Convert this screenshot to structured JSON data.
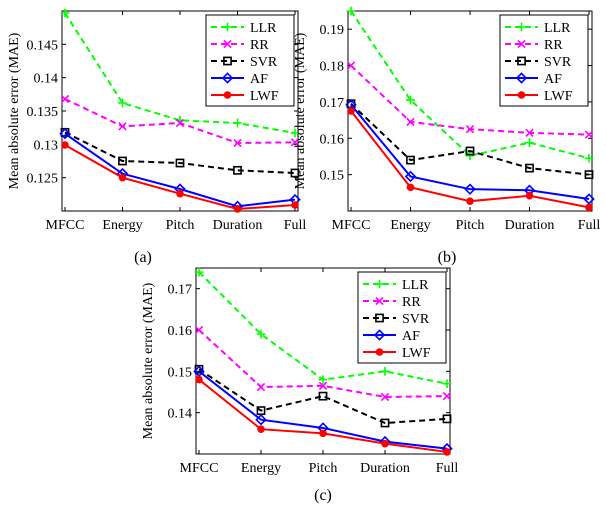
{
  "legend_labels": [
    "LLR",
    "RR",
    "SVR",
    "AF",
    "LWF"
  ],
  "series_style": [
    {
      "color": "#00ff00",
      "dash": "6,4",
      "marker": "plus"
    },
    {
      "color": "#ff00ff",
      "dash": "6,4",
      "marker": "x"
    },
    {
      "color": "#000000",
      "dash": "6,4",
      "marker": "square"
    },
    {
      "color": "#0000ff",
      "dash": "",
      "marker": "diamond"
    },
    {
      "color": "#ff0000",
      "dash": "",
      "marker": "dot"
    }
  ],
  "chart_data": [
    {
      "type": "line",
      "caption": "(a)",
      "ylabel": "Mean absolute error (MAE)",
      "categories": [
        "MFCC",
        "Energy",
        "Pitch",
        "Duration",
        "Full"
      ],
      "ylim": [
        0.12,
        0.15
      ],
      "yticks": [
        0.125,
        0.13,
        0.135,
        0.14,
        0.145
      ],
      "ytick_labels": [
        "0.125",
        "0.13",
        "0.135",
        "0.14",
        "0.145"
      ],
      "legend_position": "top-right",
      "series": [
        {
          "name": "LLR",
          "values": [
            0.1497,
            0.1362,
            0.1336,
            0.1332,
            0.1317
          ]
        },
        {
          "name": "RR",
          "values": [
            0.1368,
            0.1327,
            0.1332,
            0.1302,
            0.1303
          ]
        },
        {
          "name": "SVR",
          "values": [
            0.1318,
            0.1275,
            0.1272,
            0.1261,
            0.1257
          ]
        },
        {
          "name": "AF",
          "values": [
            0.1316,
            0.1256,
            0.1233,
            0.1207,
            0.1217
          ]
        },
        {
          "name": "LWF",
          "values": [
            0.1299,
            0.125,
            0.1226,
            0.1203,
            0.1209
          ]
        }
      ]
    },
    {
      "type": "line",
      "caption": "(b)",
      "ylabel": "Mean absolute error (MAE)",
      "categories": [
        "MFCC",
        "Energy",
        "Pitch",
        "Duration",
        "Full"
      ],
      "ylim": [
        0.14,
        0.195
      ],
      "yticks": [
        0.15,
        0.16,
        0.17,
        0.18,
        0.19
      ],
      "ytick_labels": [
        "0.15",
        "0.16",
        "0.17",
        "0.18",
        "0.19"
      ],
      "legend_position": "top-right",
      "series": [
        {
          "name": "LLR",
          "values": [
            0.195,
            0.1705,
            0.1552,
            0.1588,
            0.1545
          ]
        },
        {
          "name": "RR",
          "values": [
            0.18,
            0.1645,
            0.1625,
            0.1615,
            0.161
          ]
        },
        {
          "name": "SVR",
          "values": [
            0.1695,
            0.154,
            0.1565,
            0.1518,
            0.15
          ]
        },
        {
          "name": "AF",
          "values": [
            0.1692,
            0.1495,
            0.146,
            0.1457,
            0.1433
          ]
        },
        {
          "name": "LWF",
          "values": [
            0.1675,
            0.1465,
            0.1427,
            0.1442,
            0.141
          ]
        }
      ]
    },
    {
      "type": "line",
      "caption": "(c)",
      "ylabel": "Mean absolute error (MAE)",
      "categories": [
        "MFCC",
        "Energy",
        "Pitch",
        "Duration",
        "Full"
      ],
      "ylim": [
        0.13,
        0.175
      ],
      "yticks": [
        0.14,
        0.15,
        0.16,
        0.17
      ],
      "ytick_labels": [
        "0.14",
        "0.15",
        "0.16",
        "0.17"
      ],
      "legend_position": "top-right",
      "series": [
        {
          "name": "LLR",
          "values": [
            0.174,
            0.159,
            0.148,
            0.15,
            0.147
          ]
        },
        {
          "name": "RR",
          "values": [
            0.16,
            0.1462,
            0.1465,
            0.1438,
            0.144
          ]
        },
        {
          "name": "SVR",
          "values": [
            0.1505,
            0.1405,
            0.144,
            0.1375,
            0.1385
          ]
        },
        {
          "name": "AF",
          "values": [
            0.15,
            0.1383,
            0.1363,
            0.133,
            0.1313
          ]
        },
        {
          "name": "LWF",
          "values": [
            0.148,
            0.136,
            0.135,
            0.1325,
            0.1305
          ]
        }
      ]
    }
  ]
}
